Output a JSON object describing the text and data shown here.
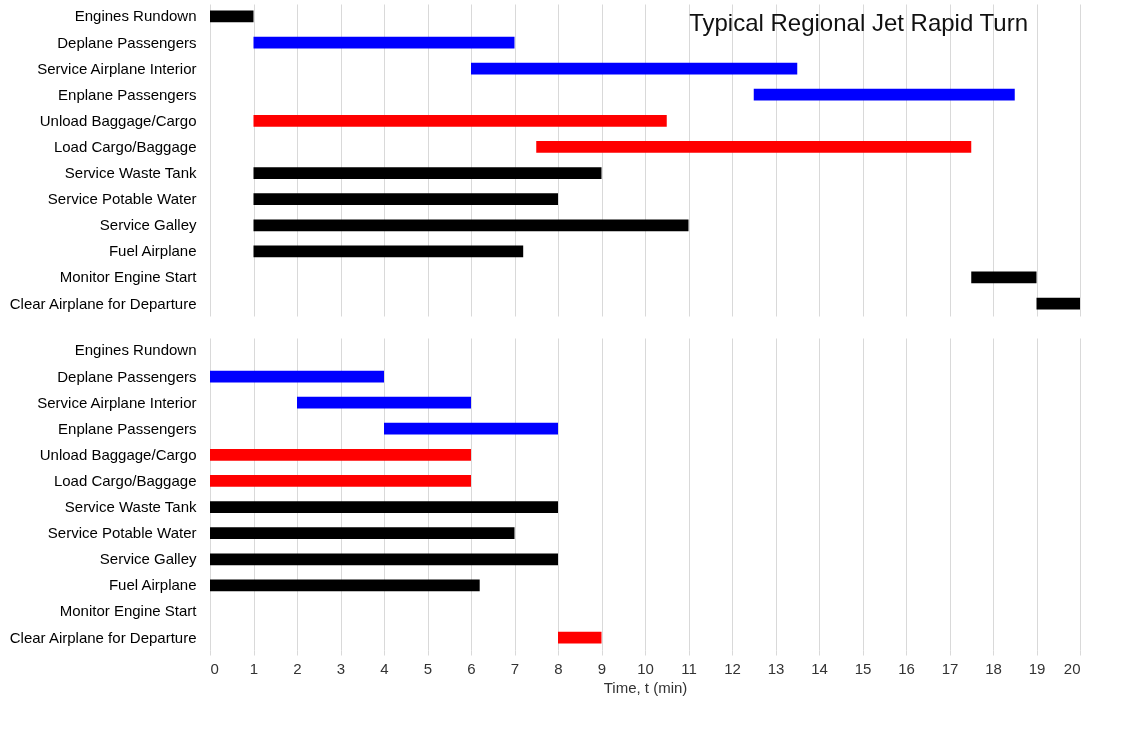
{
  "chart_data": [
    {
      "type": "bar",
      "orientation": "horizontal",
      "title": "Typical Regional Jet Rapid Turn",
      "categories": [
        "Engines Rundown",
        "Deplane Passengers",
        "Service Airplane Interior",
        "Enplane Passengers",
        "Unload Baggage/Cargo",
        "Load Cargo/Baggage",
        "Service Waste Tank",
        "Service Potable Water",
        "Service Galley",
        "Fuel Airplane",
        "Monitor Engine Start",
        "Clear Airplane for Departure"
      ],
      "base": [
        0,
        1,
        6,
        12.5,
        1,
        7.5,
        1,
        1,
        1,
        1,
        17.5,
        19
      ],
      "values": [
        1,
        6,
        7.5,
        6,
        9.5,
        10,
        8,
        7,
        10,
        6.2,
        1.5,
        1
      ],
      "colors": [
        "#000000",
        "#0000ff",
        "#0000ff",
        "#0000ff",
        "#ff0000",
        "#ff0000",
        "#000000",
        "#000000",
        "#000000",
        "#000000",
        "#000000",
        "#000000"
      ],
      "xlim": [
        0,
        20
      ],
      "xticks": [
        0,
        1,
        2,
        3,
        4,
        5,
        6,
        7,
        8,
        9,
        10,
        11,
        12,
        13,
        14,
        15,
        16,
        17,
        18,
        19,
        20
      ],
      "grid": "x",
      "tick_labels": "y"
    },
    {
      "type": "bar",
      "orientation": "horizontal",
      "xlabel": "Time, t (min)",
      "categories": [
        "Engines Rundown",
        "Deplane Passengers",
        "Service Airplane Interior",
        "Enplane Passengers",
        "Unload Baggage/Cargo",
        "Load Cargo/Baggage",
        "Service Waste Tank",
        "Service Potable Water",
        "Service Galley",
        "Fuel Airplane",
        "Monitor Engine Start",
        "Clear Airplane for Departure"
      ],
      "base": [
        null,
        0,
        2,
        4,
        0,
        0,
        0,
        0,
        0,
        0,
        null,
        8
      ],
      "values": [
        null,
        4,
        4,
        4,
        6,
        6,
        8,
        7,
        8,
        6.2,
        null,
        1
      ],
      "colors": [
        "#000000",
        "#0000ff",
        "#0000ff",
        "#0000ff",
        "#ff0000",
        "#ff0000",
        "#000000",
        "#000000",
        "#000000",
        "#000000",
        "#000000",
        "#ff0000"
      ],
      "xlim": [
        0,
        20
      ],
      "xticks": [
        0,
        1,
        2,
        3,
        4,
        5,
        6,
        7,
        8,
        9,
        10,
        11,
        12,
        13,
        14,
        15,
        16,
        17,
        18,
        19,
        20
      ],
      "grid": "x"
    }
  ]
}
